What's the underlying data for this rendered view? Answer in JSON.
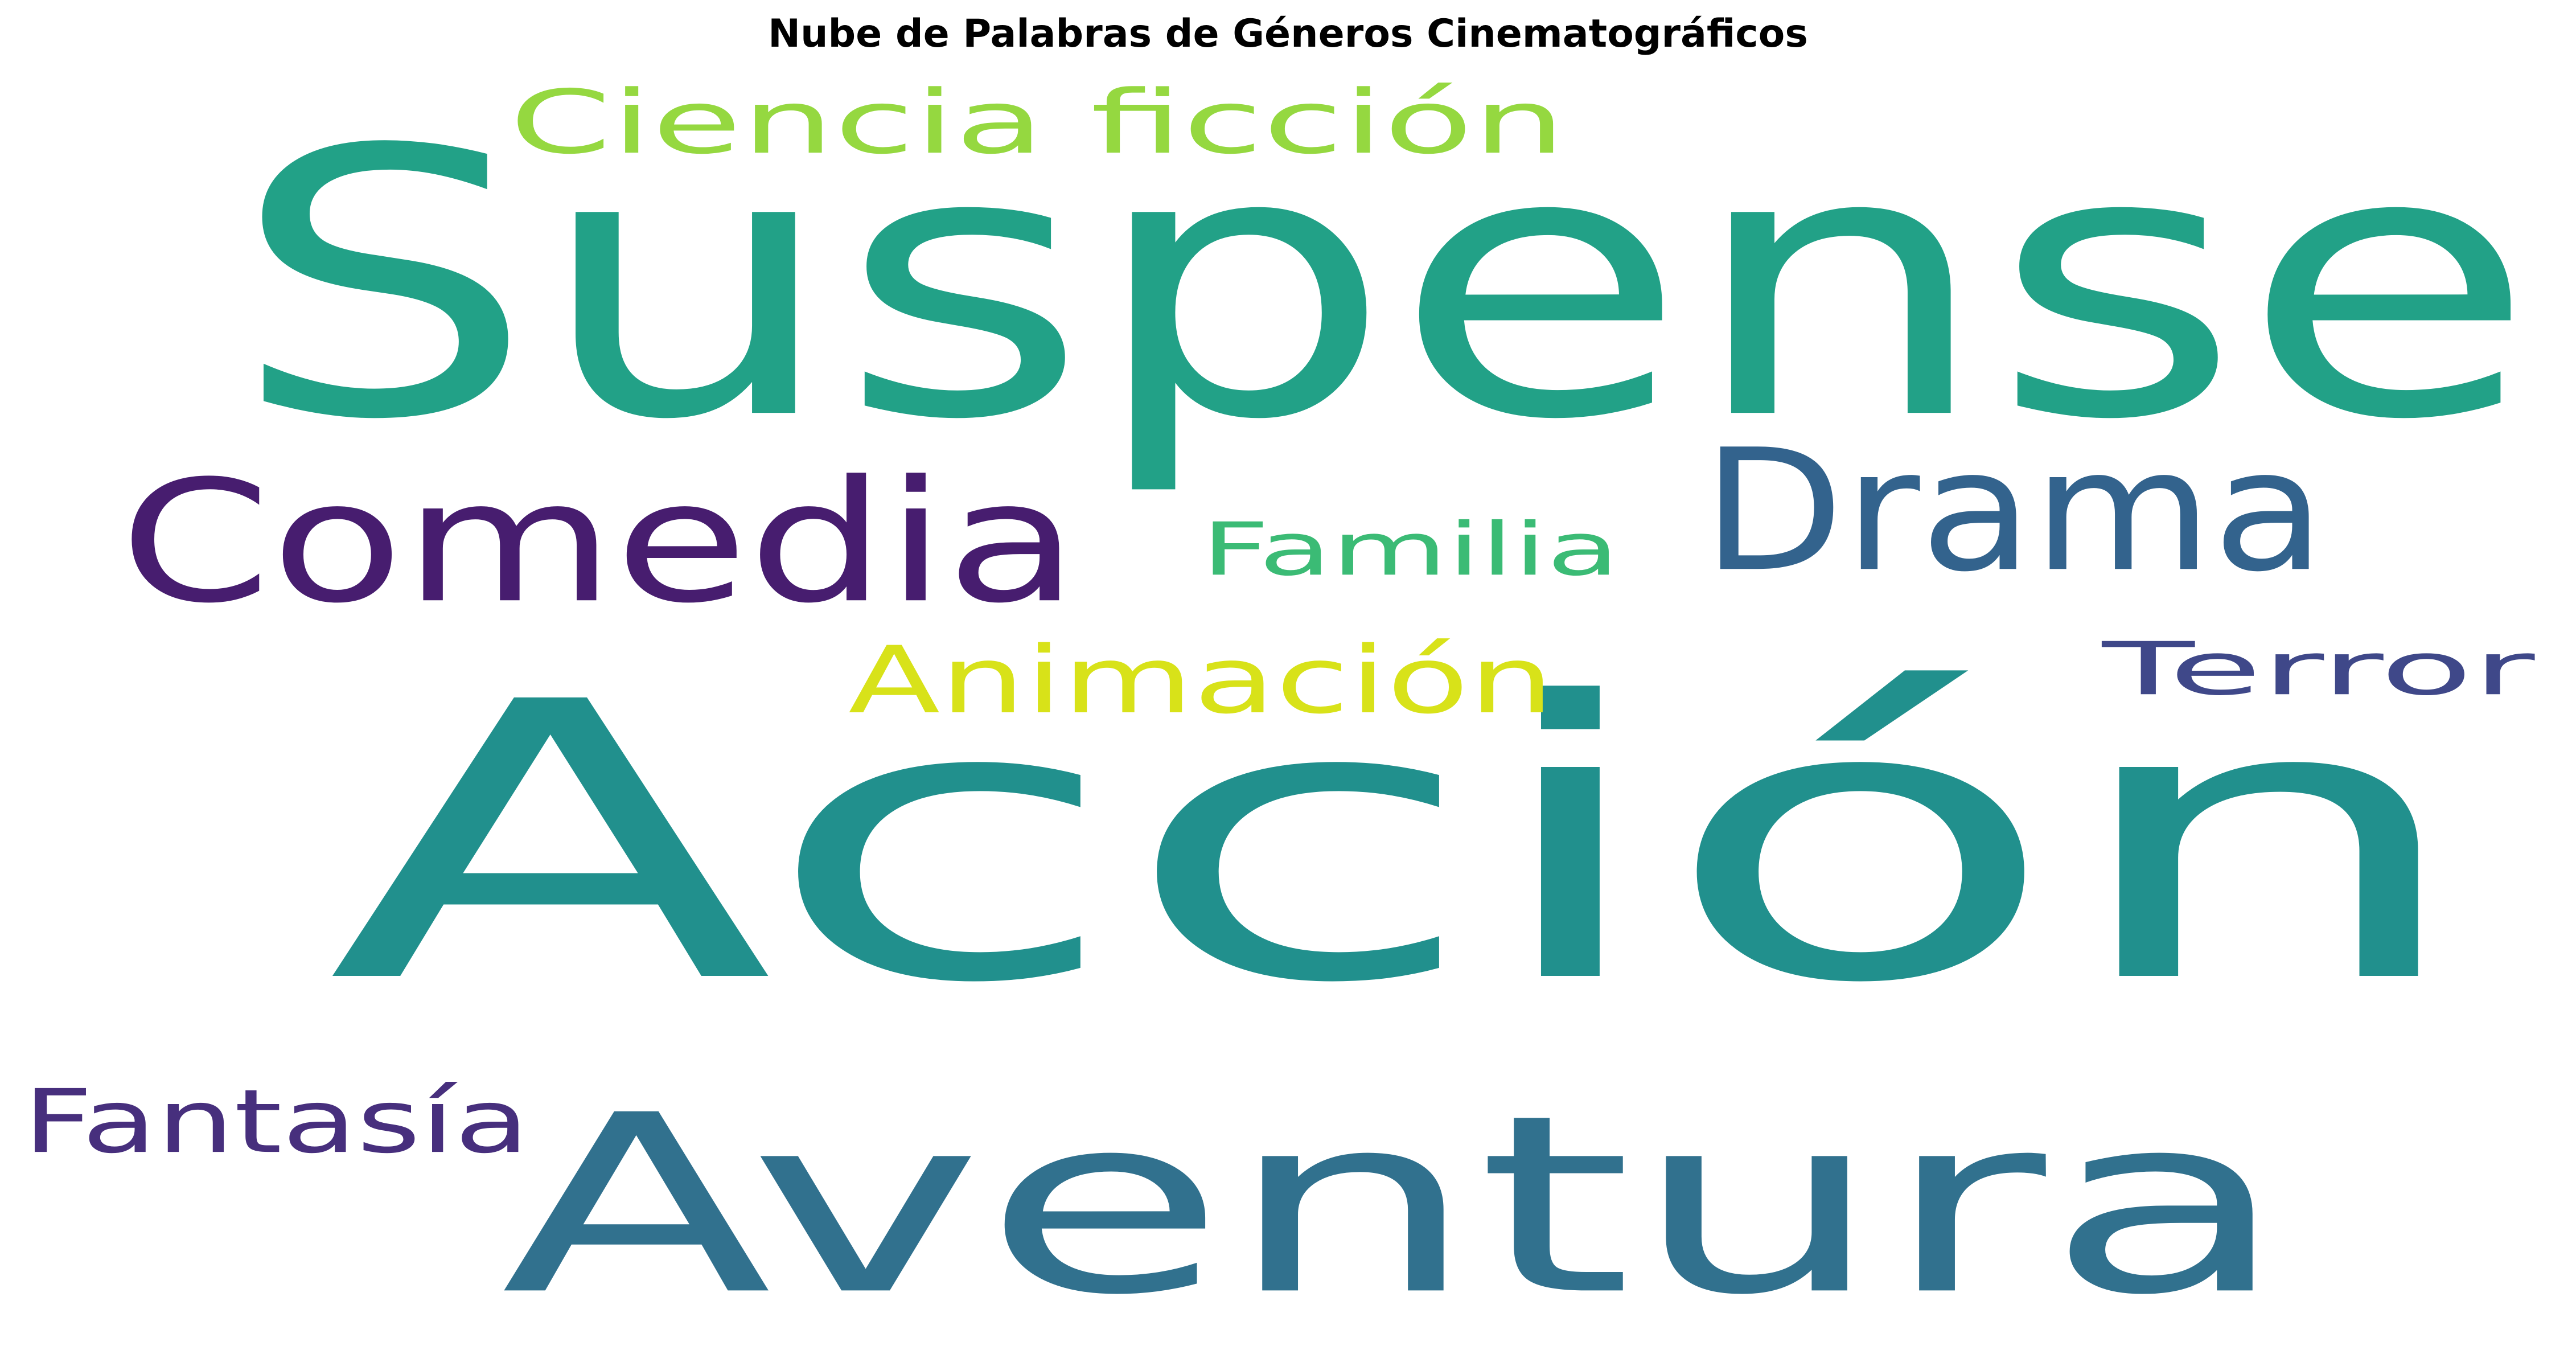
{
  "chart_data": {
    "type": "wordcloud",
    "title": "Nube de Palabras de Géneros Cinematográficos",
    "colormap": "viridis",
    "background": "#ffffff",
    "words": [
      {
        "text": "Acción",
        "color": "#21908d"
      },
      {
        "text": "Suspense",
        "color": "#22a187"
      },
      {
        "text": "Aventura",
        "color": "#31718e"
      },
      {
        "text": "Comedia",
        "color": "#471d6f"
      },
      {
        "text": "Drama",
        "color": "#33638d"
      },
      {
        "text": "Ciencia ficción",
        "color": "#95d840"
      },
      {
        "text": "Familia",
        "color": "#3bbb75"
      },
      {
        "text": "Animación",
        "color": "#d8e219"
      },
      {
        "text": "Terror",
        "color": "#3f4889"
      },
      {
        "text": "Fantasía",
        "color": "#472f7d"
      }
    ]
  }
}
